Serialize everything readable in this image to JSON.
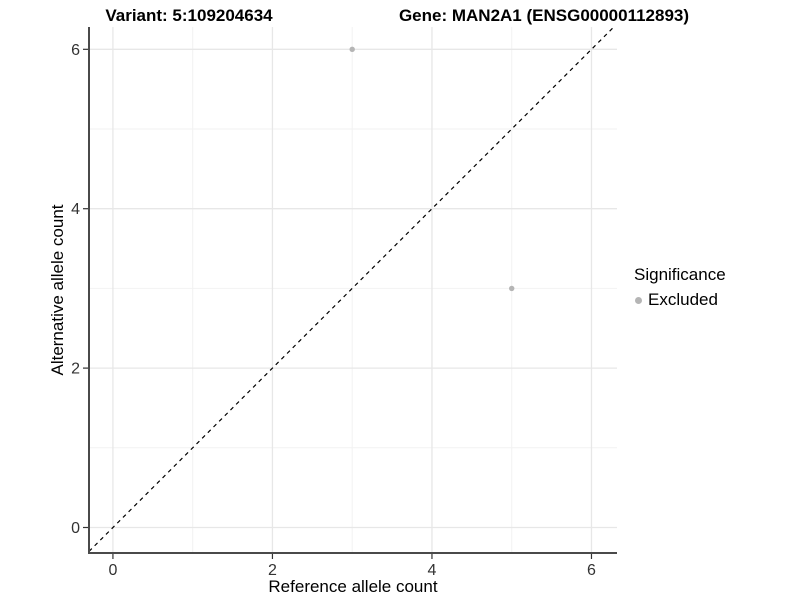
{
  "chart_data": {
    "type": "scatter",
    "title_left": "Variant: 5:109204634",
    "title_right": "Gene: MAN2A1 (ENSG00000112893)",
    "xlabel": "Reference allele count",
    "ylabel": "Alternative allele count",
    "xlim": [
      -0.3,
      6.32
    ],
    "ylim": [
      -0.32,
      6.28
    ],
    "x_ticks": [
      0,
      2,
      4,
      6
    ],
    "y_ticks": [
      0,
      2,
      4,
      6
    ],
    "x_minor": [
      1,
      3,
      5
    ],
    "y_minor": [
      1,
      3,
      5
    ],
    "grid": true,
    "identity_line": {
      "style": "dashed",
      "color": "#000000"
    },
    "series": [
      {
        "name": "Excluded",
        "color": "#b5b5b5",
        "points": [
          {
            "x": 3,
            "y": 6
          },
          {
            "x": 5,
            "y": 3
          }
        ]
      }
    ],
    "legend": {
      "title": "Significance",
      "position": "right",
      "items": [
        {
          "label": "Excluded",
          "color": "#b5b5b5"
        }
      ]
    }
  },
  "colors": {
    "axis_line": "#4a4a4a",
    "tick_mark": "#333333",
    "tick_text": "#333333",
    "grid_major": "#e7e7e7",
    "grid_minor": "#f2f2f2"
  }
}
